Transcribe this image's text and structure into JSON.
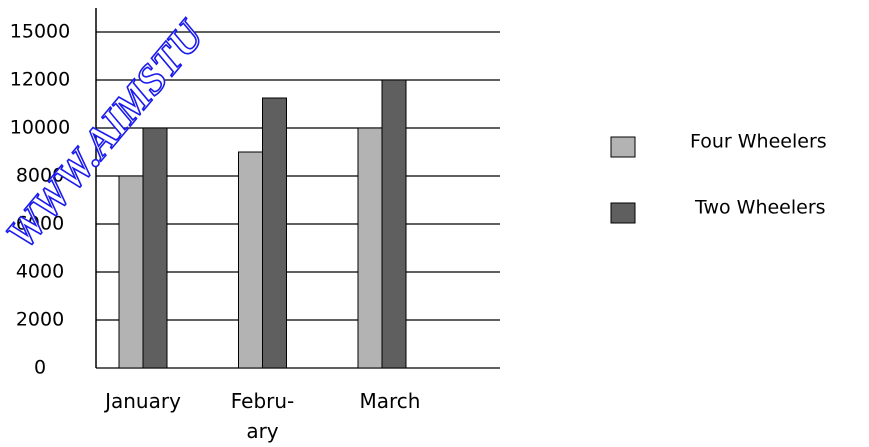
{
  "chart_data": {
    "type": "bar",
    "categories": [
      "January",
      "Febru-\nary",
      "March"
    ],
    "series": [
      {
        "name": "Four Wheelers",
        "color": "#b3b3b3",
        "values": [
          8000,
          9000,
          10000
        ]
      },
      {
        "name": "Two Wheelers",
        "color": "#5f5f5f",
        "values": [
          10000,
          11250,
          12000
        ]
      }
    ],
    "ylim": [
      0,
      15000
    ],
    "yticks": [
      0,
      2000,
      4000,
      6000,
      8000,
      10000,
      12000,
      15000
    ],
    "grid": true,
    "legend": "right",
    "watermark": "WWW.AIMSTU"
  }
}
